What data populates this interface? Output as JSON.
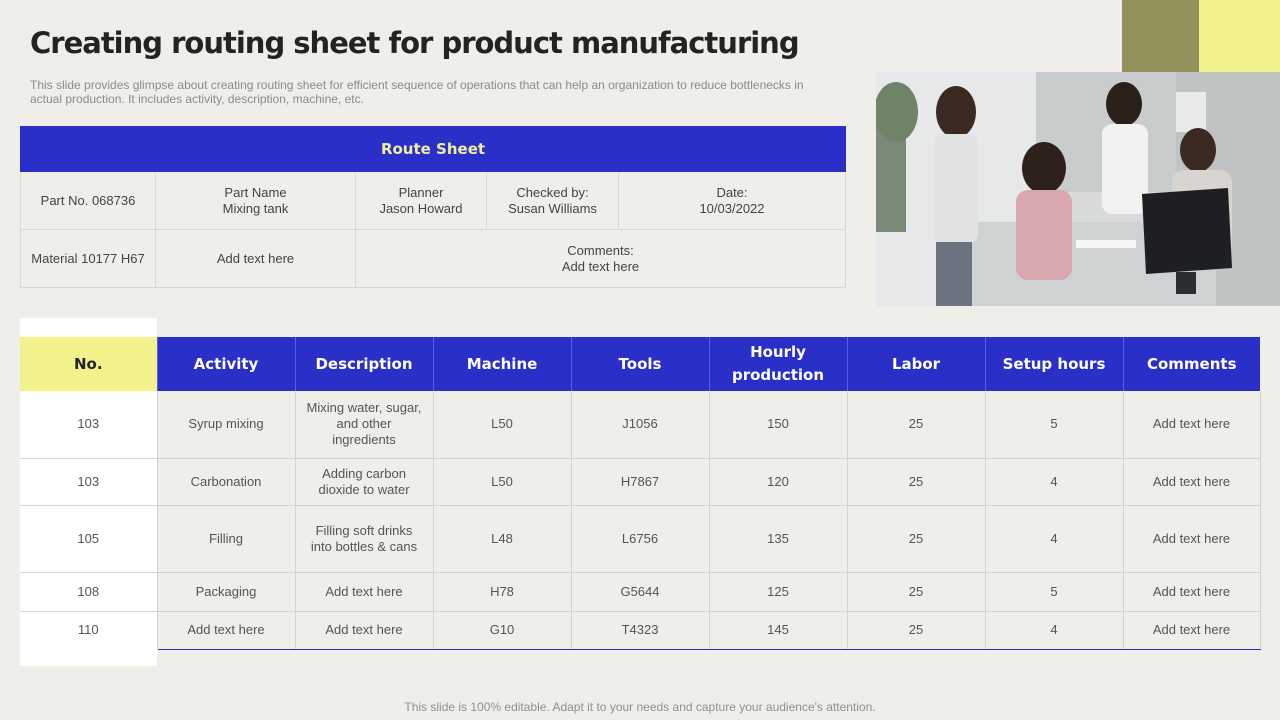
{
  "title": "Creating routing sheet for product manufacturing",
  "subtitle": "This slide provides glimpse about creating routing sheet for efficient sequence of operations that can help an organization to reduce bottlenecks in actual production. It includes activity, description, machine, etc.",
  "colors": {
    "accent_blue": "#2a2fc8",
    "accent_yellow": "#f1f28c",
    "accent_olive": "#93915c",
    "background": "#efeee8"
  },
  "photo": {
    "icon": "office-team-photo"
  },
  "route_sheet": {
    "heading": "Route Sheet",
    "part_no": "Part No. 068736",
    "part_name_label": "Part Name",
    "part_name_value": "Mixing tank",
    "planner_label": "Planner",
    "planner_value": "Jason Howard",
    "checked_label": "Checked by:",
    "checked_value": "Susan Williams",
    "date_label": "Date:",
    "date_value": "10/03/2022",
    "material": "Material 10177 H67",
    "material_text": "Add text here",
    "comments_label": "Comments:",
    "comments_value": "Add text here"
  },
  "table": {
    "headers": [
      "No.",
      "Activity",
      "Description",
      "Machine",
      "Tools",
      "Hourly production",
      "Labor",
      "Setup hours",
      "Comments"
    ],
    "rows": [
      [
        "103",
        "Syrup mixing",
        "Mixing water, sugar, and other ingredients",
        "L50",
        "J1056",
        "150",
        "25",
        "5",
        "Add text here"
      ],
      [
        "103",
        "Carbonation",
        "Adding carbon dioxide to water",
        "L50",
        "H7867",
        "120",
        "25",
        "4",
        "Add text here"
      ],
      [
        "105",
        "Filling",
        "Filling soft drinks into bottles & cans",
        "L48",
        "L6756",
        "135",
        "25",
        "4",
        "Add text here"
      ],
      [
        "108",
        "Packaging",
        "Add text here",
        "H78",
        "G5644",
        "125",
        "25",
        "5",
        "Add text here"
      ],
      [
        "110",
        "Add text here",
        "Add text here",
        "G10",
        "T4323",
        "145",
        "25",
        "4",
        "Add text here"
      ]
    ]
  },
  "footer": "This slide is 100% editable. Adapt it to your needs and capture your audience's attention."
}
